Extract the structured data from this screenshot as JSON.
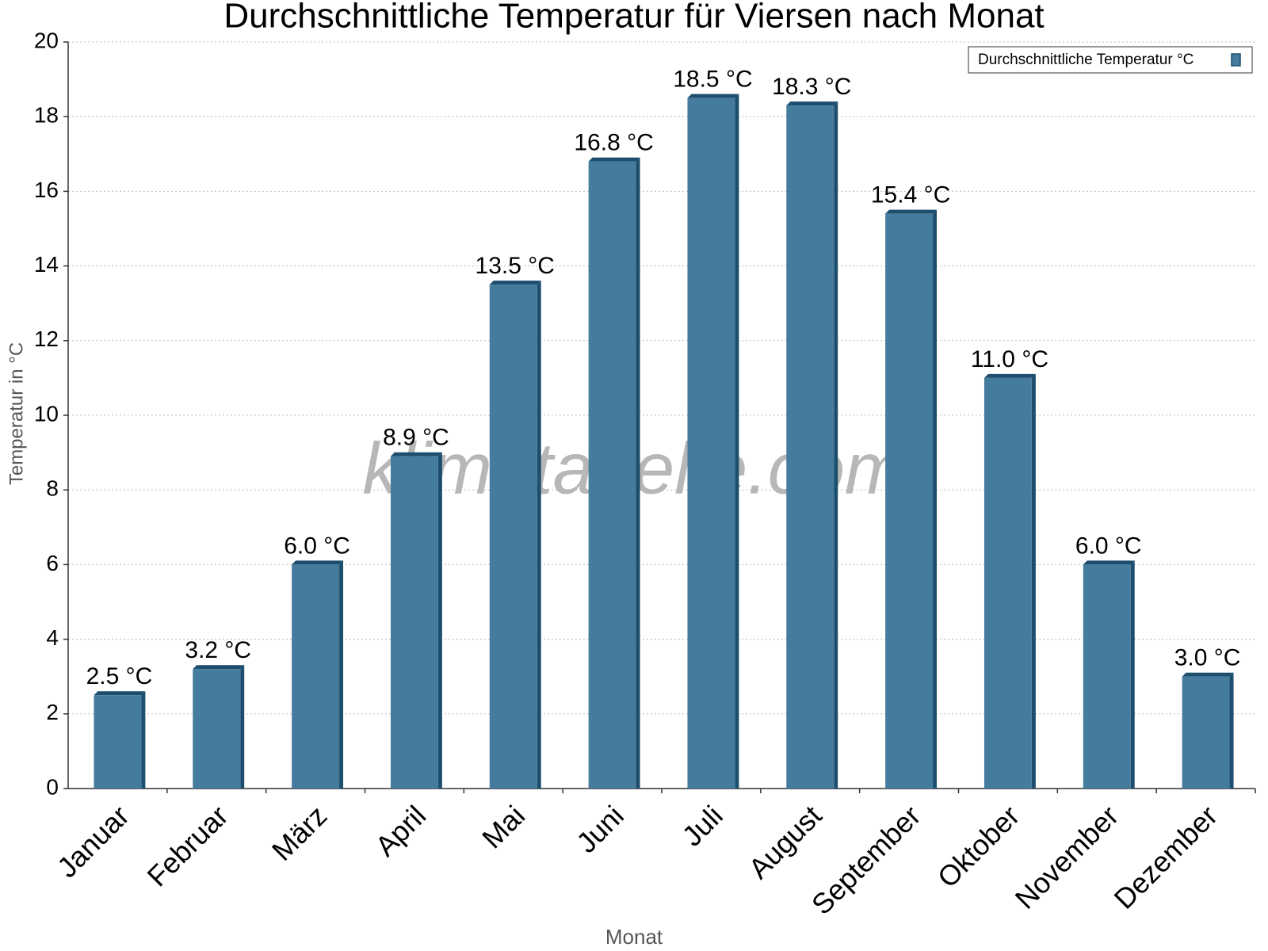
{
  "chart_data": {
    "type": "bar",
    "title": "Durchschnittliche Temperatur für Viersen nach Monat",
    "watermark": "klimatabelle.com",
    "x_label": "Monat",
    "y_label": "Temperatur in °C",
    "categories": [
      "Januar",
      "Februar",
      "März",
      "April",
      "Mai",
      "Juni",
      "Juli",
      "August",
      "September",
      "Oktober",
      "November",
      "Dezember"
    ],
    "series": [
      {
        "name": "Durchschnittliche Temperatur °C",
        "color": "#457b9d",
        "values": [
          2.5,
          3.2,
          6.0,
          8.9,
          13.5,
          16.8,
          18.5,
          18.3,
          15.4,
          11.0,
          6.0,
          3.0
        ],
        "value_labels": [
          "2.5 °C",
          "3.2 °C",
          "6.0 °C",
          "8.9 °C",
          "13.5 °C",
          "16.8 °C",
          "18.5 °C",
          "18.3 °C",
          "15.4 °C",
          "11.0 °C",
          "6.0 °C",
          "3.0 °C"
        ]
      }
    ],
    "ylim": [
      0,
      20
    ],
    "yticks": [
      0,
      2,
      4,
      6,
      8,
      10,
      12,
      14,
      16,
      18,
      20
    ],
    "grid": true,
    "legend": "top-right"
  }
}
